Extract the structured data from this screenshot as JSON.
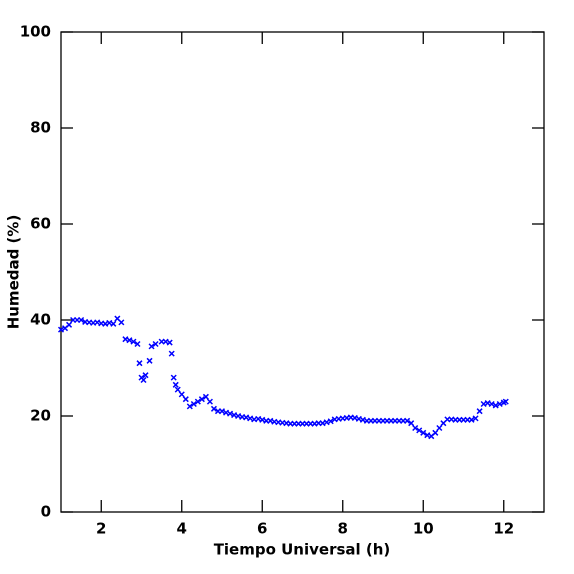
{
  "chart_data": {
    "type": "scatter",
    "xlabel": "Tiempo Universal (h)",
    "ylabel": "Humedad (%)",
    "xlim": [
      1,
      13
    ],
    "ylim": [
      0,
      100
    ],
    "xticks": [
      2,
      4,
      6,
      8,
      10,
      12
    ],
    "yticks": [
      0,
      20,
      40,
      60,
      80,
      100
    ],
    "color": "#0000ff",
    "x": [
      1.0,
      1.1,
      1.2,
      1.3,
      1.4,
      1.5,
      1.6,
      1.7,
      1.8,
      1.9,
      2.0,
      2.1,
      2.2,
      2.3,
      2.4,
      2.5,
      2.6,
      2.7,
      2.8,
      2.9,
      2.95,
      3.0,
      3.05,
      3.1,
      3.2,
      3.25,
      3.35,
      3.5,
      3.6,
      3.7,
      3.75,
      3.8,
      3.85,
      3.9,
      4.0,
      4.1,
      4.2,
      4.3,
      4.4,
      4.5,
      4.6,
      4.7,
      4.8,
      4.9,
      5.0,
      5.1,
      5.2,
      5.3,
      5.4,
      5.5,
      5.6,
      5.7,
      5.8,
      5.9,
      6.0,
      6.1,
      6.2,
      6.3,
      6.4,
      6.5,
      6.6,
      6.7,
      6.8,
      6.9,
      7.0,
      7.1,
      7.2,
      7.3,
      7.4,
      7.5,
      7.6,
      7.7,
      7.8,
      7.9,
      8.0,
      8.1,
      8.2,
      8.3,
      8.4,
      8.5,
      8.6,
      8.7,
      8.8,
      8.9,
      9.0,
      9.1,
      9.2,
      9.3,
      9.4,
      9.5,
      9.6,
      9.7,
      9.8,
      9.9,
      10.0,
      10.1,
      10.2,
      10.3,
      10.4,
      10.5,
      10.6,
      10.7,
      10.8,
      10.9,
      11.0,
      11.1,
      11.2,
      11.3,
      11.4,
      11.5,
      11.6,
      11.7,
      11.8,
      11.9,
      12.0,
      12.05
    ],
    "values": [
      38,
      38.3,
      39,
      40,
      40,
      40,
      39.6,
      39.5,
      39.4,
      39.5,
      39.3,
      39.2,
      39.4,
      39.2,
      40.3,
      39.5,
      36,
      35.8,
      35.5,
      35,
      31,
      28,
      27.5,
      28.5,
      31.5,
      34.5,
      35,
      35.5,
      35.5,
      35.3,
      33,
      28,
      26.5,
      25.5,
      24.5,
      23.5,
      22,
      22.5,
      23,
      23.5,
      24,
      23,
      21.5,
      21,
      21,
      20.7,
      20.5,
      20.2,
      20,
      19.8,
      19.7,
      19.5,
      19.3,
      19.4,
      19.2,
      19,
      19,
      18.8,
      18.7,
      18.6,
      18.5,
      18.4,
      18.4,
      18.4,
      18.4,
      18.4,
      18.4,
      18.4,
      18.5,
      18.5,
      18.7,
      18.9,
      19.3,
      19.4,
      19.5,
      19.6,
      19.7,
      19.6,
      19.4,
      19.2,
      19,
      19,
      19,
      19,
      19,
      19,
      19,
      19,
      19,
      19,
      19,
      18.5,
      17.5,
      17,
      16.5,
      16,
      15.8,
      16.5,
      17.5,
      18.5,
      19.3,
      19.3,
      19.2,
      19.2,
      19.2,
      19.2,
      19.2,
      19.5,
      21,
      22.5,
      22.7,
      22.5,
      22.2,
      22.5,
      22.8,
      23
    ]
  }
}
